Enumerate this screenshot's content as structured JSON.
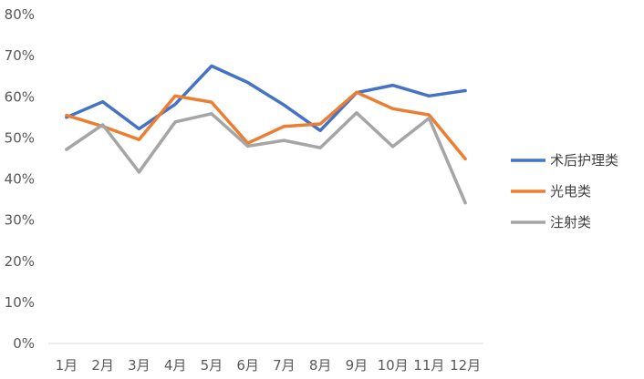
{
  "chart_data": {
    "type": "line",
    "categories": [
      "1月",
      "2月",
      "3月",
      "4月",
      "5月",
      "6月",
      "7月",
      "8月",
      "9月",
      "10月",
      "11月",
      "12月"
    ],
    "series": [
      {
        "name": "术后护理类",
        "color": "#4472C4",
        "values": [
          55.0,
          58.8,
          52.2,
          58.2,
          67.5,
          63.5,
          58.0,
          51.8,
          61.0,
          62.8,
          60.2,
          61.5
        ]
      },
      {
        "name": "光电类",
        "color": "#ED7D31",
        "values": [
          55.5,
          52.8,
          49.6,
          60.2,
          58.7,
          48.7,
          52.8,
          53.4,
          61.1,
          57.1,
          55.6,
          44.9
        ]
      },
      {
        "name": "注射类",
        "color": "#A5A5A5",
        "values": [
          47.2,
          53.2,
          41.7,
          53.9,
          55.9,
          48.0,
          49.4,
          47.6,
          56.1,
          47.9,
          54.8,
          34.2
        ]
      }
    ],
    "y_ticks": [
      "0%",
      "10%",
      "20%",
      "30%",
      "40%",
      "50%",
      "60%",
      "70%",
      "80%"
    ],
    "ylim": [
      0,
      80
    ],
    "grid": false,
    "legend_position": "right",
    "title": "",
    "xlabel": "",
    "ylabel": ""
  }
}
